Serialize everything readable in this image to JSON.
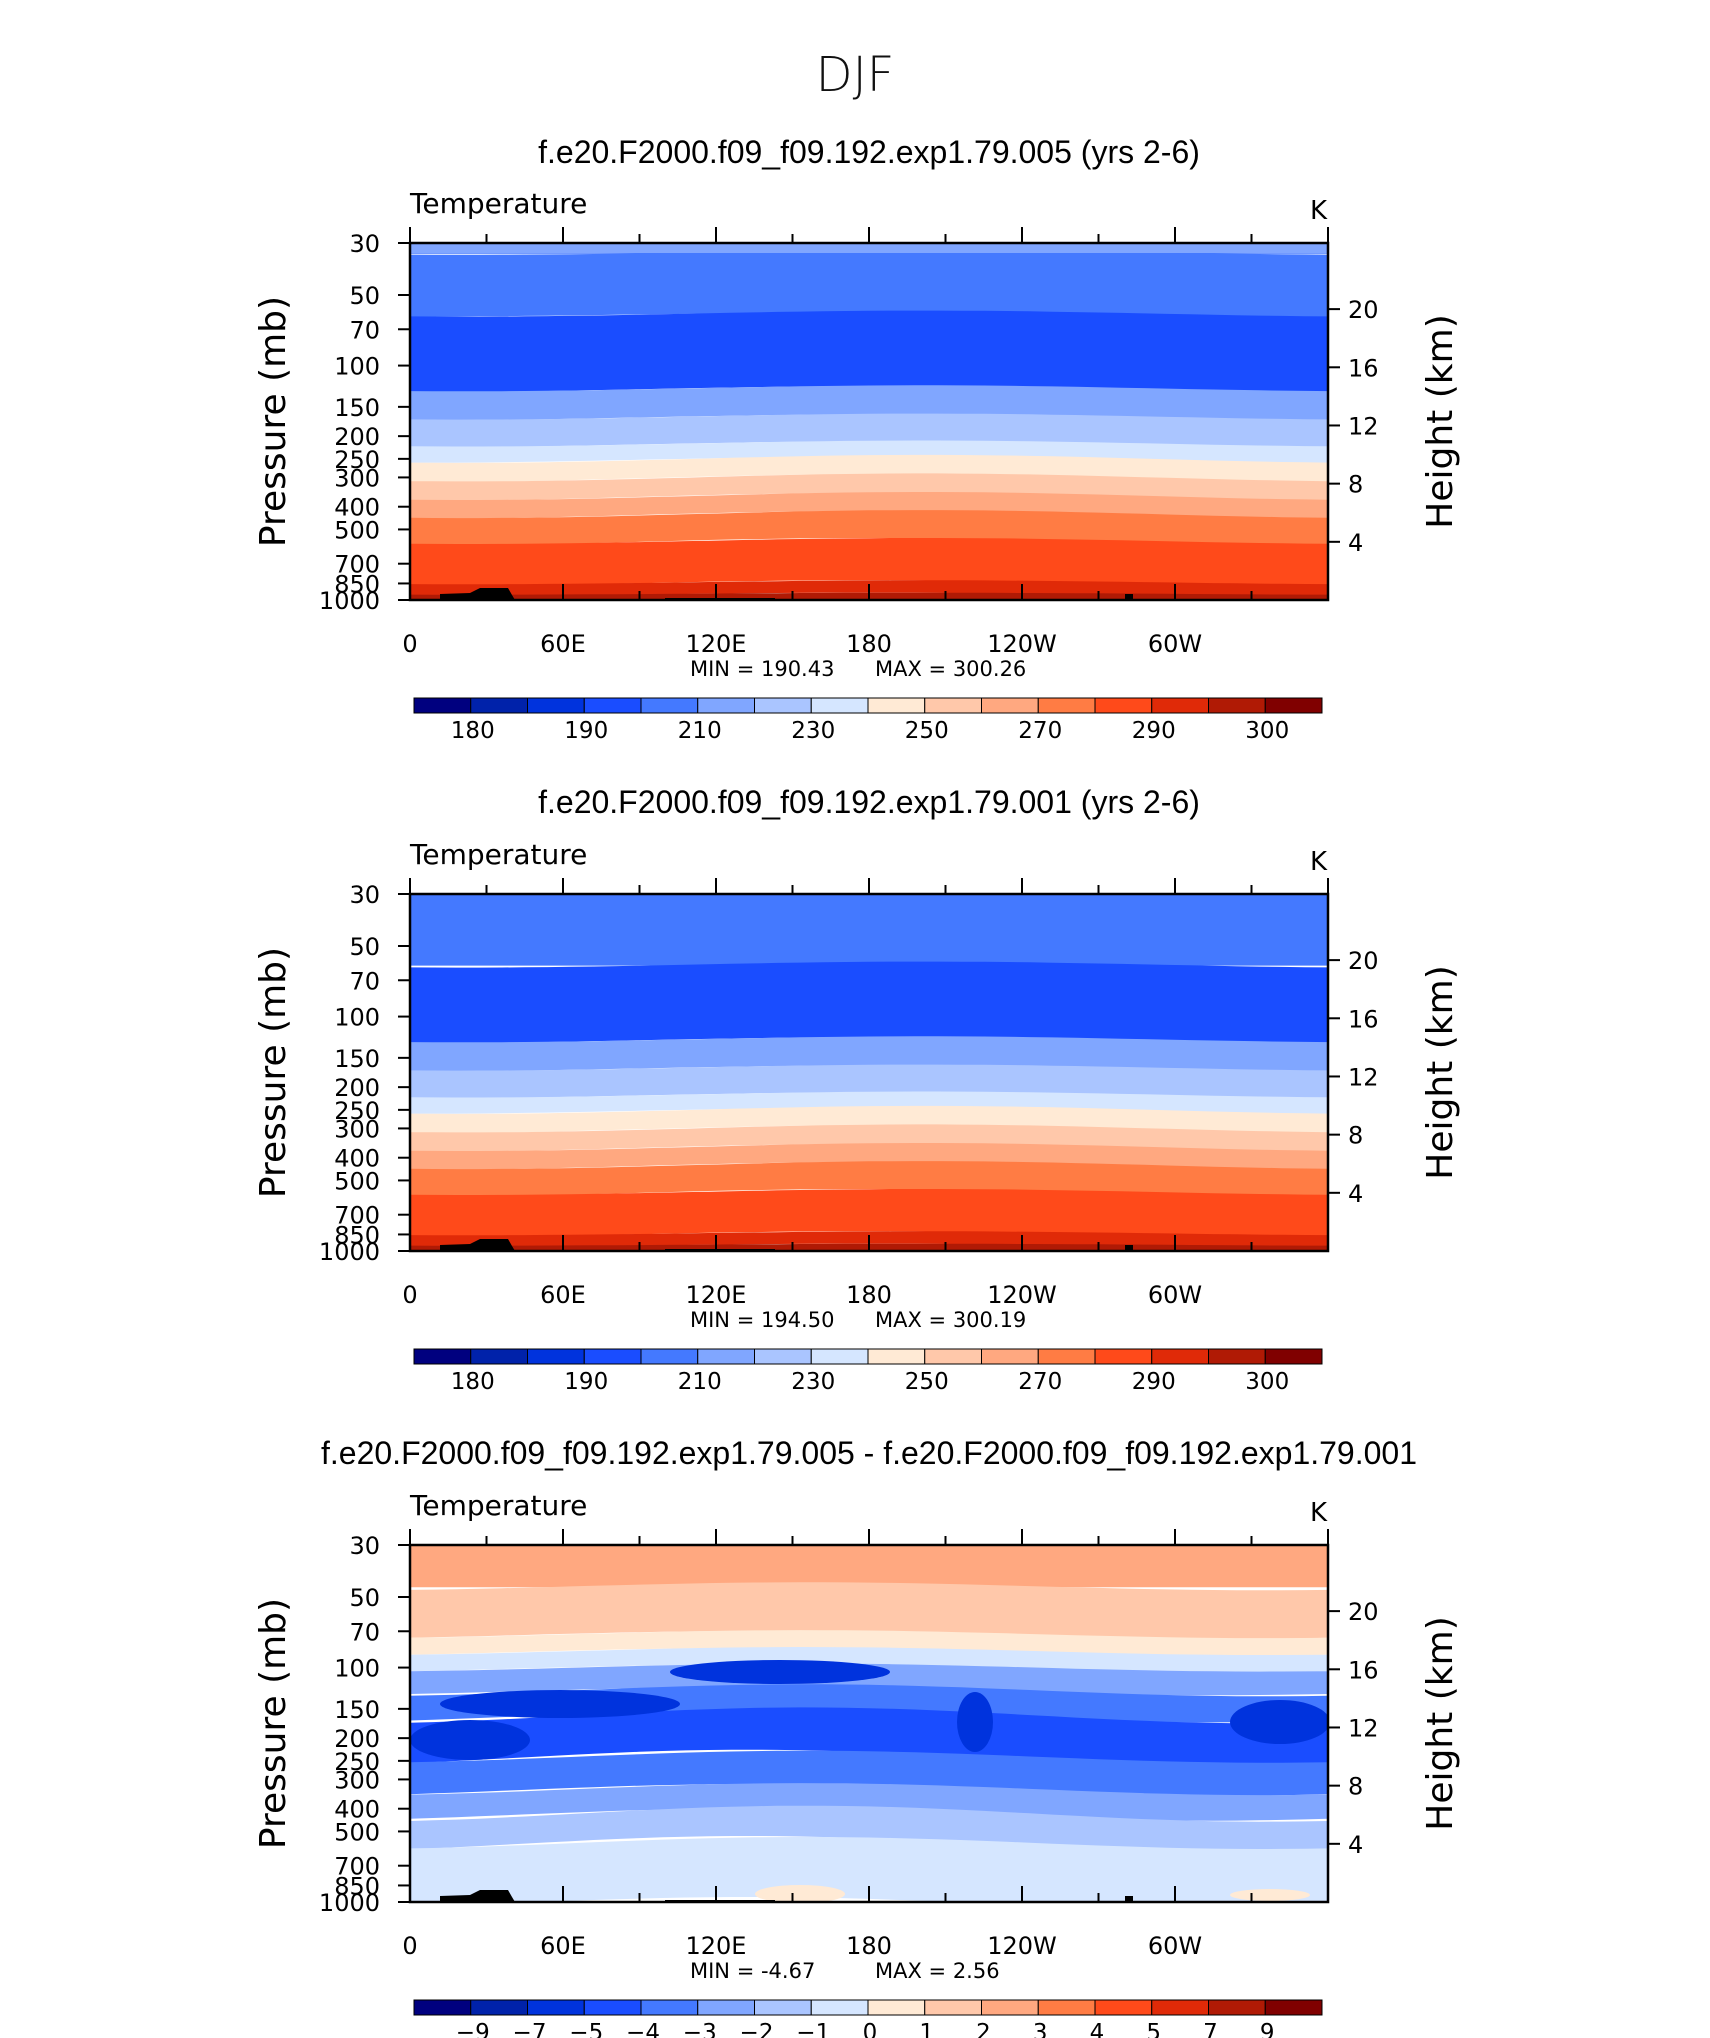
{
  "figure": {
    "title": "DJF"
  },
  "colors": {
    "temperature_levels": [
      "#00007f",
      "#0022aa",
      "#0033dd",
      "#1a4dff",
      "#4479ff",
      "#80a6ff",
      "#aac5ff",
      "#d5e6ff",
      "#ffead5",
      "#ffc8aa",
      "#ffa880",
      "#ff7c44",
      "#ff4a1a",
      "#e02a08",
      "#b01a05",
      "#800000"
    ],
    "terrain": "#000000"
  },
  "chart_data": [
    {
      "type": "heatmap",
      "title": "f.e20.F2000.f09_f09.192.exp1.79.005 (yrs 2-6)",
      "left_label": "Temperature",
      "right_label": "K",
      "ylabel": "Pressure (mb)",
      "ylabel_right": "Height (km)",
      "y_ticks": [
        "30",
        "50",
        "70",
        "100",
        "150",
        "200",
        "250",
        "300",
        "400",
        "500",
        "700",
        "850",
        "1000"
      ],
      "y_ticks_right": [
        "20",
        "16",
        "12",
        "8",
        "4"
      ],
      "x_ticks": [
        "0",
        "60E",
        "120E",
        "180",
        "120W",
        "60W"
      ],
      "min_label": "MIN  =  190.43",
      "max_label": "MAX  =  300.26",
      "colorbar_labels": [
        "180",
        "190",
        "210",
        "230",
        "250",
        "270",
        "290",
        "300"
      ]
    },
    {
      "type": "heatmap",
      "title": "f.e20.F2000.f09_f09.192.exp1.79.001 (yrs 2-6)",
      "left_label": "Temperature",
      "right_label": "K",
      "ylabel": "Pressure (mb)",
      "ylabel_right": "Height (km)",
      "y_ticks": [
        "30",
        "50",
        "70",
        "100",
        "150",
        "200",
        "250",
        "300",
        "400",
        "500",
        "700",
        "850",
        "1000"
      ],
      "y_ticks_right": [
        "20",
        "16",
        "12",
        "8",
        "4"
      ],
      "x_ticks": [
        "0",
        "60E",
        "120E",
        "180",
        "120W",
        "60W"
      ],
      "min_label": "MIN  =  194.50",
      "max_label": "MAX  =  300.19",
      "colorbar_labels": [
        "180",
        "190",
        "210",
        "230",
        "250",
        "270",
        "290",
        "300"
      ]
    },
    {
      "type": "heatmap",
      "title": "f.e20.F2000.f09_f09.192.exp1.79.005 - f.e20.F2000.f09_f09.192.exp1.79.001",
      "left_label": "Temperature",
      "right_label": "K",
      "ylabel": "Pressure (mb)",
      "ylabel_right": "Height (km)",
      "y_ticks": [
        "30",
        "50",
        "70",
        "100",
        "150",
        "200",
        "250",
        "300",
        "400",
        "500",
        "700",
        "850",
        "1000"
      ],
      "y_ticks_right": [
        "20",
        "16",
        "12",
        "8",
        "4"
      ],
      "x_ticks": [
        "0",
        "60E",
        "120E",
        "180",
        "120W",
        "60W"
      ],
      "min_label": "MIN  =     -4.67",
      "max_label": "MAX  =      2.56",
      "colorbar_labels": [
        "-9",
        "-7",
        "-5",
        "-4",
        "-3",
        "-2",
        "-1",
        "0",
        "1",
        "2",
        "3",
        "4",
        "5",
        "7",
        "9"
      ]
    }
  ]
}
